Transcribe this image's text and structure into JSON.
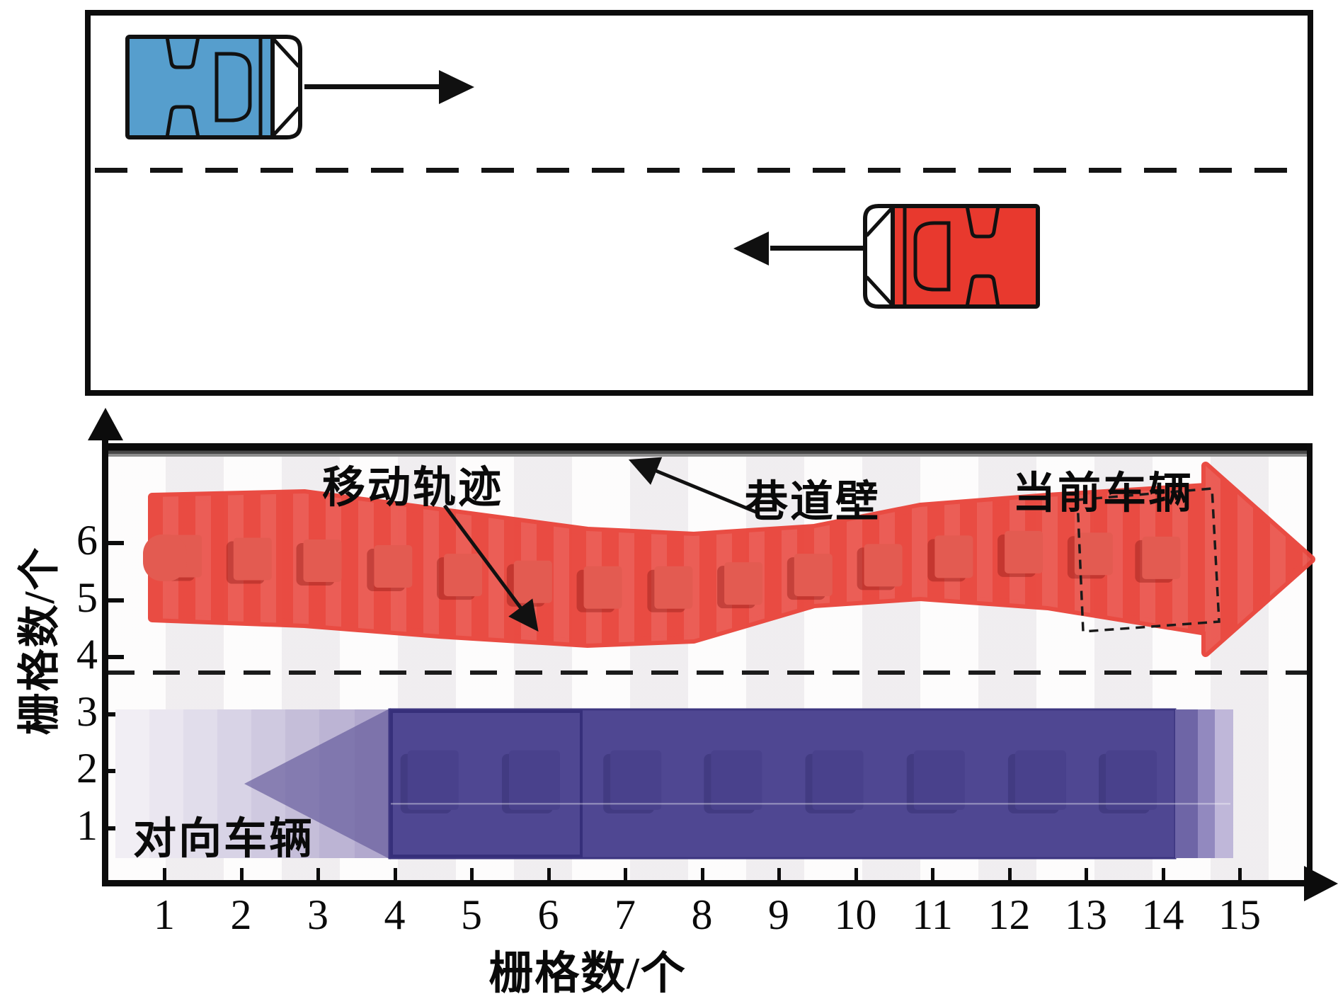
{
  "figure": {
    "top_panel": {
      "description": "two-lane roadway schematic",
      "lane_divider_style": "dashed",
      "vehicles": [
        {
          "id": "ego-vehicle",
          "color": "#569ECD",
          "direction": "right",
          "lane": "upper"
        },
        {
          "id": "oncoming-vehicle",
          "color": "#E8392E",
          "direction": "left",
          "lane": "lower"
        }
      ]
    },
    "chart": {
      "x_axis_label": "栅格数/个",
      "y_axis_label": "栅格数/个",
      "x_ticks": [
        "1",
        "2",
        "3",
        "4",
        "5",
        "6",
        "7",
        "8",
        "9",
        "10",
        "11",
        "12",
        "13",
        "14",
        "15"
      ],
      "y_ticks": [
        "1",
        "2",
        "3",
        "4",
        "5",
        "6"
      ],
      "annotations": {
        "trajectory_label": "移动轨迹",
        "wall_label": "巷道壁",
        "current_vehicle_label": "当前车辆",
        "oncoming_vehicle_label": "对向车辆"
      },
      "colors": {
        "current_vehicle_band": "#E9453C",
        "current_vehicle_marker": "#E35B51",
        "oncoming_vehicle_band": "#4F4792",
        "oncoming_vehicle_marker": "#49418C",
        "wall": "#0B0B0B"
      }
    }
  },
  "chart_data": {
    "type": "area",
    "title": "",
    "xlabel": "栅格数/个",
    "ylabel": "栅格数/个",
    "xlim": [
      0,
      15.7
    ],
    "ylim": [
      0,
      7.7
    ],
    "grid": false,
    "wall_y": 7.7,
    "lane_divider_y": 3.75,
    "series": [
      {
        "name": "当前车辆 (moving trajectory, rightward)",
        "color": "#E9453C",
        "direction": "right",
        "band_x_range": [
          0.8,
          14.8
        ],
        "band_y_range": [
          4.6,
          6.9
        ],
        "arrow_tip": [
          15.6,
          5.7
        ],
        "vehicle_marker_positions": [
          {
            "x": 1.24,
            "y": 5.77
          },
          {
            "x": 2.15,
            "y": 5.72
          },
          {
            "x": 3.06,
            "y": 5.69
          },
          {
            "x": 3.98,
            "y": 5.59
          },
          {
            "x": 4.89,
            "y": 5.44
          },
          {
            "x": 5.8,
            "y": 5.32
          },
          {
            "x": 6.71,
            "y": 5.22
          },
          {
            "x": 7.63,
            "y": 5.22
          },
          {
            "x": 8.54,
            "y": 5.29
          },
          {
            "x": 9.45,
            "y": 5.44
          },
          {
            "x": 10.36,
            "y": 5.61
          },
          {
            "x": 11.28,
            "y": 5.76
          },
          {
            "x": 12.19,
            "y": 5.84
          },
          {
            "x": 13.1,
            "y": 5.81
          },
          {
            "x": 13.98,
            "y": 5.74
          }
        ],
        "nose_marker": {
          "x": 1.0,
          "y": 5.74
        }
      },
      {
        "name": "对向车辆 (oncoming trajectory, leftward)",
        "color": "#4F4792",
        "direction": "left",
        "band_x_range": [
          2.0,
          14.9
        ],
        "band_y_range": [
          0.45,
          3.05
        ],
        "arrow_tip": [
          2.04,
          1.78
        ],
        "vehicle_marker_positions": [
          {
            "x": 4.5,
            "y": 1.84
          },
          {
            "x": 5.82,
            "y": 1.84
          },
          {
            "x": 7.14,
            "y": 1.84
          },
          {
            "x": 8.45,
            "y": 1.84
          },
          {
            "x": 9.77,
            "y": 1.84
          },
          {
            "x": 11.09,
            "y": 1.84
          },
          {
            "x": 12.41,
            "y": 1.84
          },
          {
            "x": 13.59,
            "y": 1.84
          }
        ]
      }
    ]
  }
}
